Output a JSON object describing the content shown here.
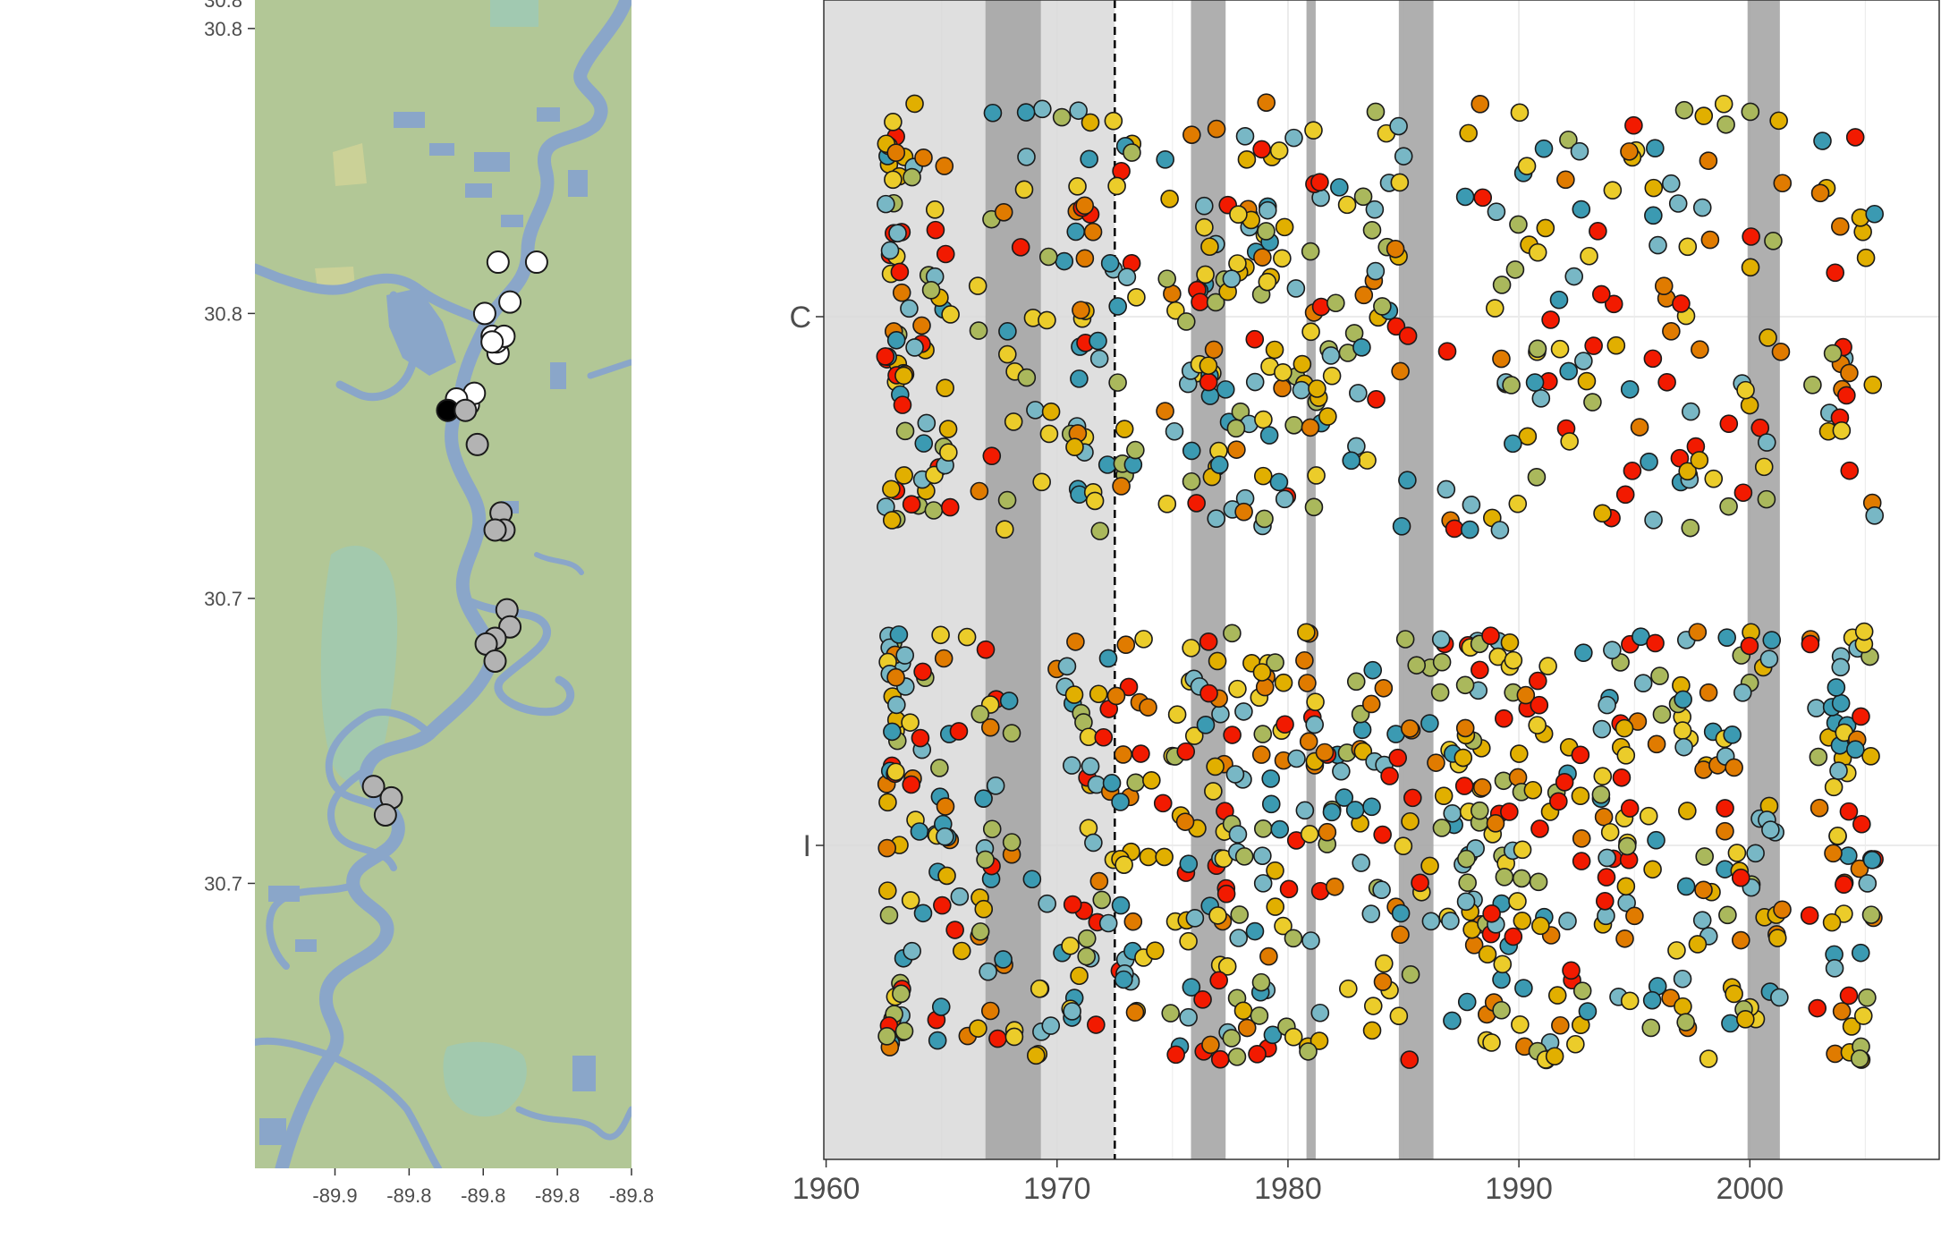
{
  "chart_data": [
    {
      "type": "scatter",
      "panel": "map",
      "x_tick_labels": [
        "-89.9",
        "-89.8",
        "-89.8",
        "-89.8",
        "-89.8"
      ],
      "x_tick_values": [
        -89.85,
        -89.825,
        -89.8,
        -89.775,
        -89.75
      ],
      "y_tick_labels": [
        "30.8",
        "30.8",
        "30.7",
        "30.7"
      ],
      "y_tick_values": [
        30.825,
        30.775,
        30.725,
        30.675
      ],
      "xlim": [
        -89.877,
        -89.75
      ],
      "ylim": [
        30.625,
        30.83
      ],
      "colors": {
        "land": "#b2c796",
        "water": "#8aa6c9",
        "wetland": "#9ec9b4",
        "upland": "#cdd197"
      },
      "series": [
        {
          "color": "#ffffff",
          "points": [
            [
              -89.795,
              30.784
            ],
            [
              -89.782,
              30.784
            ],
            [
              -89.7995,
              30.775
            ],
            [
              -89.791,
              30.777
            ],
            [
              -89.797,
              30.771
            ],
            [
              -89.795,
              30.768
            ],
            [
              -89.7955,
              30.77
            ],
            [
              -89.793,
              30.771
            ],
            [
              -89.797,
              30.77
            ],
            [
              -89.805,
              30.759
            ],
            [
              -89.803,
              30.761
            ],
            [
              -89.809,
              30.76
            ]
          ]
        },
        {
          "color": "#000000",
          "points": [
            [
              -89.812,
              30.758
            ]
          ]
        },
        {
          "color": "#b3b3b3",
          "points": [
            [
              -89.806,
              30.758
            ],
            [
              -89.802,
              30.752
            ],
            [
              -89.794,
              30.74
            ],
            [
              -89.793,
              30.737
            ],
            [
              -89.796,
              30.737
            ],
            [
              -89.792,
              30.723
            ],
            [
              -89.791,
              30.72
            ],
            [
              -89.796,
              30.718
            ],
            [
              -89.799,
              30.717
            ],
            [
              -89.796,
              30.714
            ],
            [
              -89.837,
              30.692
            ],
            [
              -89.831,
              30.69
            ],
            [
              -89.833,
              30.687
            ]
          ]
        }
      ]
    },
    {
      "type": "scatter",
      "panel": "timeline",
      "x_tick_labels": [
        "1960",
        "1970",
        "1980",
        "1990",
        "2000"
      ],
      "xlim": [
        1959.9,
        2008.2
      ],
      "y_categories": [
        "C",
        "I"
      ],
      "threshold_year": 1972.5,
      "background_until": 1972.5,
      "shaded_periods": [
        [
          1966.9,
          1969.3
        ],
        [
          1975.8,
          1977.3
        ],
        [
          1980.8,
          1981.2
        ],
        [
          1984.8,
          1986.3
        ],
        [
          1999.9,
          2001.3
        ]
      ],
      "colors": {
        "background": "#d9d9d9",
        "band": "#a6a6a6",
        "gridline": "#ebebeb"
      },
      "palette": [
        "#3b9ab2",
        "#78b7c5",
        "#ebcc2a",
        "#e1af00",
        "#f21a00",
        "#e07b00",
        "#aab85c"
      ],
      "seed": 20240611,
      "years": [
        1963,
        1964,
        1965,
        1966,
        1967,
        1968,
        1969,
        1970,
        1971,
        1972,
        1973,
        1974,
        1975,
        1976,
        1977,
        1978,
        1979,
        1980,
        1981,
        1982,
        1983,
        1984,
        1985,
        1986,
        1987,
        1988,
        1989,
        1990,
        1991,
        1992,
        1993,
        1994,
        1995,
        1996,
        1997,
        1998,
        1999,
        2000,
        2001,
        2003,
        2004,
        2005
      ],
      "counts_C": [
        42,
        16,
        18,
        0,
        6,
        8,
        8,
        6,
        24,
        10,
        16,
        0,
        8,
        16,
        20,
        18,
        22,
        12,
        18,
        6,
        10,
        12,
        10,
        0,
        4,
        6,
        8,
        10,
        10,
        8,
        8,
        6,
        8,
        10,
        14,
        8,
        4,
        8,
        8,
        6,
        12,
        8
      ],
      "counts_I": [
        42,
        12,
        18,
        6,
        20,
        8,
        6,
        6,
        22,
        14,
        20,
        8,
        10,
        18,
        24,
        18,
        24,
        12,
        18,
        10,
        10,
        16,
        14,
        8,
        14,
        30,
        24,
        20,
        16,
        12,
        8,
        20,
        16,
        10,
        16,
        12,
        14,
        16,
        14,
        8,
        30,
        22
      ]
    }
  ]
}
